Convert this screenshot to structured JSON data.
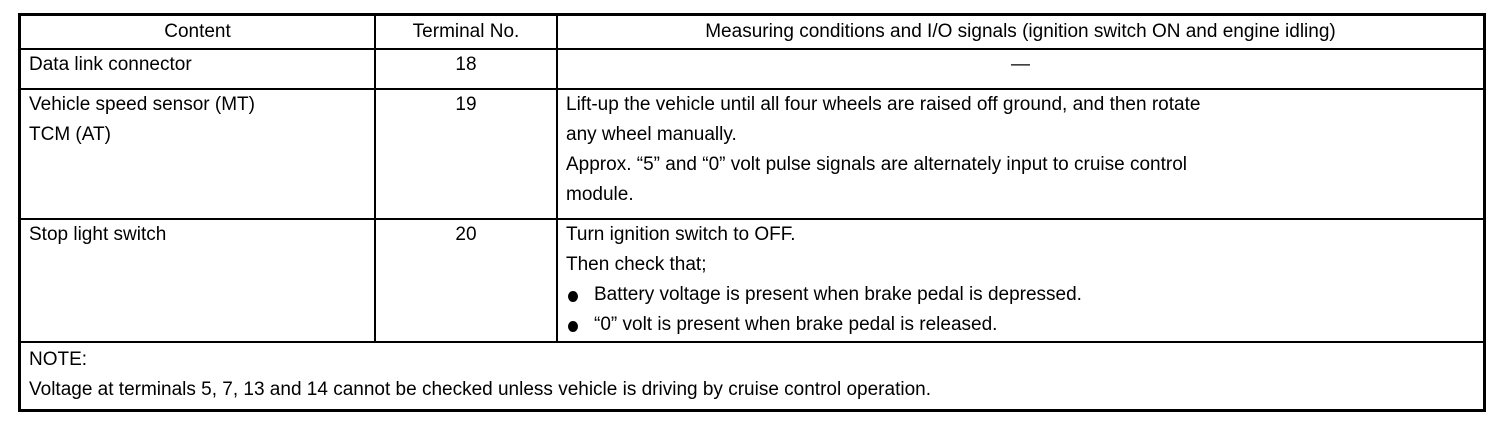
{
  "headers": [
    "Content",
    "Terminal No.",
    "Measuring conditions and I/O signals (ignition switch ON and engine idling)"
  ],
  "rows": [
    {
      "content": [
        "Data link connector"
      ],
      "terminal": "18",
      "conditions": [
        "—"
      ],
      "bullets": []
    },
    {
      "content": [
        "Vehicle speed sensor (MT)",
        "TCM (AT)"
      ],
      "terminal": "19",
      "conditions": [
        "Lift-up the vehicle until all four wheels are raised off ground, and then rotate",
        "any wheel manually.",
        "Approx. “5” and “0” volt pulse signals are alternately input to cruise control",
        "module."
      ],
      "bullets": []
    },
    {
      "content": [
        "Stop light switch"
      ],
      "terminal": "20",
      "conditions": [
        "Turn ignition switch to OFF.",
        "Then check that;"
      ],
      "bullets": [
        "Battery voltage is present when brake pedal is depressed.",
        "“0” volt is present when brake pedal is released."
      ]
    }
  ],
  "note": {
    "label": "NOTE:",
    "text": "Voltage at terminals 5, 7, 13 and 14 cannot be checked unless vehicle is driving by cruise control operation."
  }
}
